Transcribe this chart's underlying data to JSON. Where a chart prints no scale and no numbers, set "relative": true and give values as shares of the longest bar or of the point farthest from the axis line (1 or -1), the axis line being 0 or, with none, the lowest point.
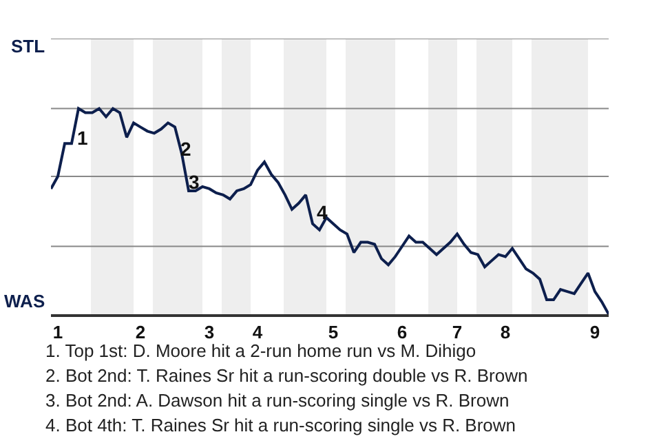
{
  "chart_data": {
    "type": "line",
    "relative": true,
    "categories": [
      null,
      "1",
      null,
      null,
      null,
      null,
      null,
      null,
      null,
      null,
      null,
      null,
      null,
      "2",
      null,
      null,
      null,
      null,
      null,
      null,
      null,
      null,
      null,
      "3",
      null,
      null,
      null,
      null,
      null,
      null,
      "4",
      null,
      null,
      null,
      null,
      null,
      null,
      null,
      null,
      null,
      null,
      "5",
      null,
      null,
      null,
      null,
      null,
      null,
      null,
      null,
      null,
      "6",
      null,
      null,
      null,
      null,
      null,
      null,
      null,
      "7",
      null,
      null,
      null,
      null,
      null,
      null,
      "8",
      null,
      null,
      null,
      null,
      null,
      null,
      null,
      null,
      null,
      null,
      null,
      null,
      "9",
      null,
      null
    ],
    "marker": "none",
    "line_style": "solid",
    "series": [
      {
        "color": "#0d1f4d",
        "values": [
          0.61,
          0.67,
          0.83,
          0.83,
          1.0,
          0.98,
          0.98,
          1.0,
          0.96,
          1.0,
          0.98,
          0.86,
          0.93,
          0.91,
          0.89,
          0.88,
          0.9,
          0.93,
          0.91,
          0.78,
          0.6,
          0.6,
          0.62,
          0.61,
          0.59,
          0.58,
          0.56,
          0.6,
          0.61,
          0.63,
          0.7,
          0.74,
          0.68,
          0.64,
          0.58,
          0.51,
          0.54,
          0.58,
          0.44,
          0.41,
          0.47,
          0.44,
          0.41,
          0.39,
          0.3,
          0.35,
          0.35,
          0.34,
          0.27,
          0.24,
          0.28,
          0.33,
          0.38,
          0.35,
          0.35,
          0.32,
          0.29,
          0.32,
          0.35,
          0.39,
          0.34,
          0.3,
          0.29,
          0.23,
          0.26,
          0.29,
          0.28,
          0.32,
          0.27,
          0.22,
          0.2,
          0.17,
          0.07,
          0.07,
          0.12,
          0.11,
          0.1,
          0.15,
          0.2,
          0.11,
          0.06,
          0
        ]
      }
    ],
    "ref_lines": [
      {
        "axis": "y",
        "value": 0.33,
        "color": "#888888"
      },
      {
        "axis": "y",
        "value": 0.67,
        "color": "#888888"
      },
      {
        "axis": "y",
        "value": 1.0,
        "color": "#888888"
      },
      {
        "axis": "y",
        "value": 1.34,
        "color": "#888888"
      }
    ],
    "annotations": [
      "STL",
      "WAS",
      "1",
      "2",
      "3",
      "4",
      "1. Top 1st: D. Moore hit a 2-run home run vs M. Dihigo",
      "2. Bot 2nd: T. Raines Sr hit a run-scoring double vs R. Brown",
      "3. Bot 2nd: A. Dawson hit a run-scoring single vs R. Brown",
      "4. Bot 4th: T. Raines Sr hit a run-scoring single vs R. Brown"
    ]
  }
}
